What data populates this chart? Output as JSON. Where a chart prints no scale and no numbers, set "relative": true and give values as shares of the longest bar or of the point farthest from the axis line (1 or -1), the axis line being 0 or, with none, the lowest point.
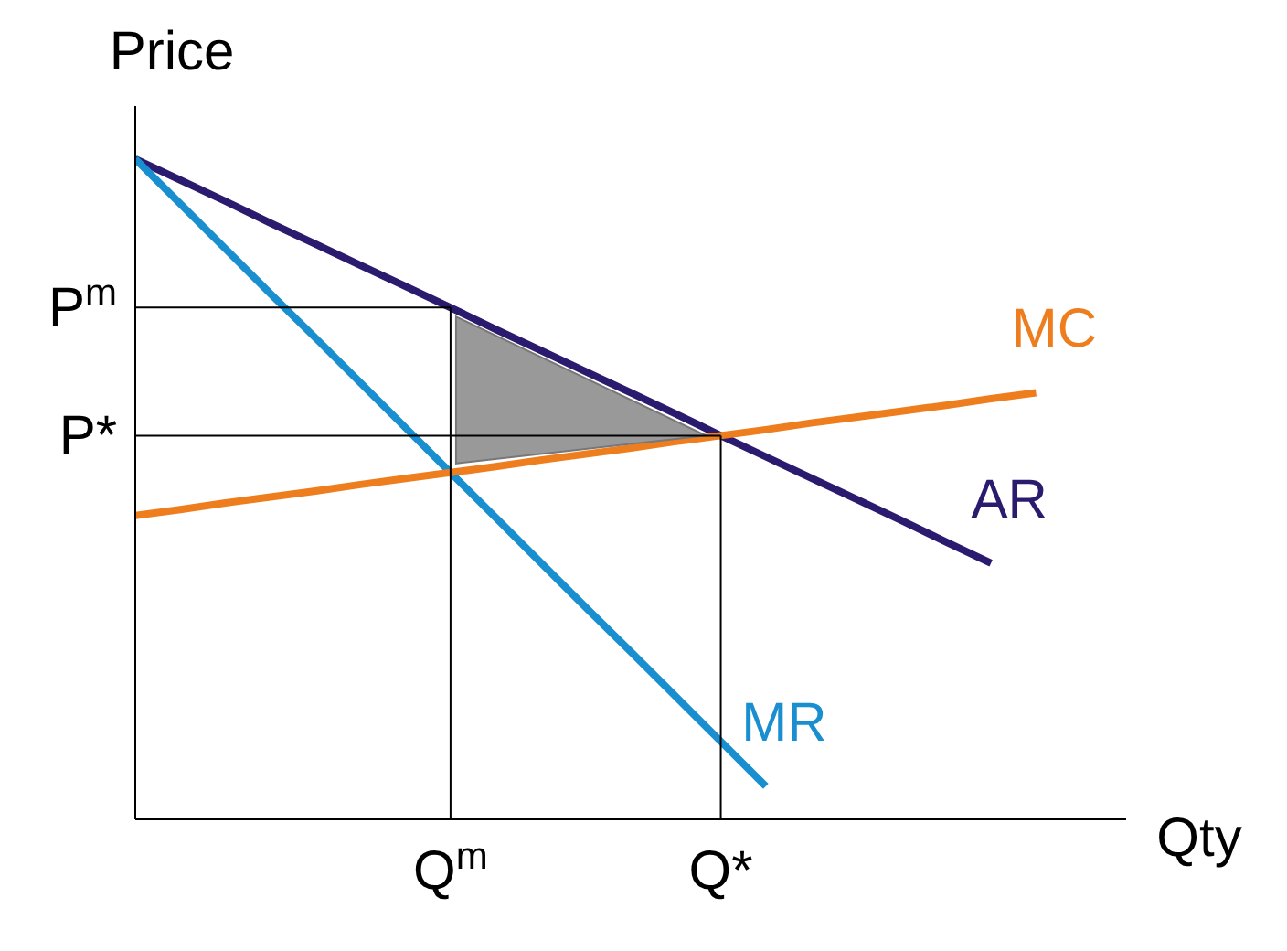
{
  "chart_data": {
    "type": "line",
    "relative": true,
    "xlabel": "Qty",
    "ylabel": "Price",
    "categories": [
      null,
      null,
      null,
      null,
      null,
      null,
      null,
      "Q$^{m}$",
      null,
      null,
      null,
      null,
      null,
      "Q*",
      null,
      null,
      null,
      null,
      null,
      null,
      null,
      null
    ],
    "ref_lines": [
      {
        "axis": "y",
        "value": 0.775,
        "label": "P$^{m}$",
        "color": "#000000"
      },
      {
        "axis": "y",
        "value": 0.581,
        "label": "P*",
        "color": "#000000"
      }
    ],
    "series": [
      {
        "name": "AR",
        "color": "#2b1b6e",
        "values": [
          1,
          0.968,
          0.936,
          0.903,
          0.871,
          0.839,
          0.807,
          0.775,
          0.742,
          0.71,
          0.678,
          0.646,
          0.614,
          0.581,
          0.549,
          0.517,
          0.485,
          0.453,
          0.42,
          0.388,
          null,
          null
        ]
      },
      {
        "name": "MR",
        "color": "#1a8fd0",
        "values": [
          1,
          0.932,
          0.864,
          0.796,
          0.729,
          0.661,
          0.593,
          0.525,
          0.457,
          0.389,
          0.321,
          0.254,
          0.186,
          0.118,
          0.05,
          null,
          null,
          null,
          null,
          null,
          null,
          null
        ]
      },
      {
        "name": "MC",
        "color": "#ee7d1e",
        "values": [
          0.46,
          0.469,
          0.479,
          0.488,
          0.497,
          0.507,
          0.516,
          0.525,
          0.534,
          0.544,
          0.553,
          0.562,
          0.572,
          0.581,
          0.59,
          0.6,
          0.609,
          0.618,
          0.627,
          0.637,
          0.646,
          null
        ]
      }
    ]
  }
}
